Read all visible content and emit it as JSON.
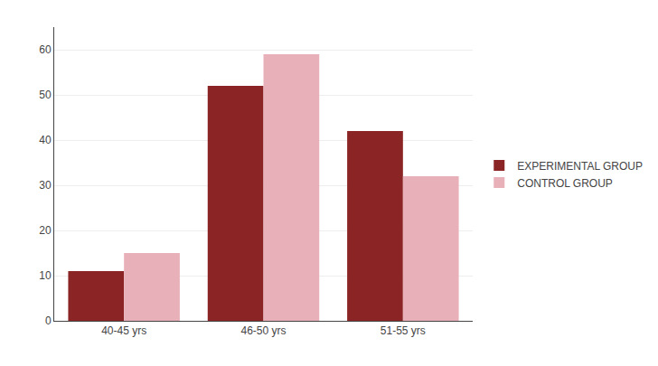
{
  "chart_data": {
    "type": "bar",
    "categories": [
      "40-45 yrs",
      "46-50 yrs",
      "51-55 yrs"
    ],
    "series": [
      {
        "name": "EXPERIMENTAL GROUP",
        "color": "#8B2525",
        "values": [
          11,
          52,
          42
        ]
      },
      {
        "name": "CONTROL GROUP",
        "color": "#E8B0B8",
        "values": [
          15,
          59,
          32
        ]
      }
    ],
    "ylim": [
      0,
      65
    ],
    "yticks": [
      0,
      10,
      20,
      30,
      40,
      50,
      60
    ],
    "grid": true,
    "legend": "right"
  }
}
